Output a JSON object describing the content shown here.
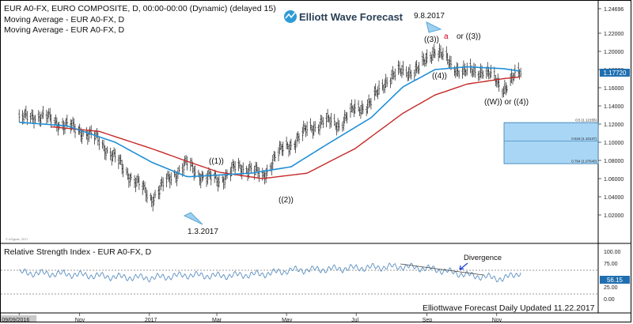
{
  "header": {
    "title": "EUR A0-FX, EURO COMPOSITE, D, 00:00-00:00 (Dynamic) (delayed 15)",
    "study1": "Moving Average - EUR A0-FX, D",
    "study2": "Moving Average - EUR A0-FX, D"
  },
  "logo": {
    "text": "Elliott Wave Forecast"
  },
  "copyright": "© eSignal, 2017",
  "rsi_panel": {
    "title": "Relative Strength Index - EUR A0-FX, D",
    "value_badge": "56.15"
  },
  "footer": {
    "text": "Elliottwave Forecast Daily Updated 11.22.2017"
  },
  "annotations": {
    "date_top": "9.8.2017",
    "wave_3": "((3))",
    "wave_a": "a",
    "or_3": "or ((3))",
    "wave_4": "((4))",
    "w_or_4": "((W)) or ((4))",
    "wave_1": "((1))",
    "wave_2": "((2))",
    "date_low": "1.3.2017",
    "divergence": "Divergence"
  },
  "colors": {
    "price": "#1a1a1a",
    "ma_blue": "#1f8fd6",
    "ma_red": "#c62828",
    "rsi": "#5a8fc0",
    "fib_box": "#a9d6f5",
    "price_badge": "#1f6fb0",
    "rsi_badge": "#1f6fb0",
    "wave_a": "#d0021b"
  },
  "chart_data": [
    {
      "type": "line",
      "title": "EUR A0-FX, EURO COMPOSITE, D",
      "xlabel": "",
      "ylabel": "",
      "ylim": [
        1.0,
        1.25
      ],
      "x_ticks": [
        "09/09/2016",
        "Nov",
        "2017",
        "Mar",
        "May",
        "Jul",
        "Sep",
        "Nov"
      ],
      "y_ticks": [
        "1.24696",
        "1.22000",
        "1.20000",
        "1.18000",
        "1.16000",
        "1.14000",
        "1.12000",
        "1.10000",
        "1.08000",
        "1.06000",
        "1.04000",
        "1.02000"
      ],
      "last_price_label": "1.17720",
      "series": [
        {
          "name": "EUR A0-FX",
          "x": [
            "2016-09-09",
            "2016-09-23",
            "2016-10-07",
            "2016-10-21",
            "2016-11-04",
            "2016-11-18",
            "2016-12-02",
            "2016-12-16",
            "2017-01-03",
            "2017-01-20",
            "2017-02-03",
            "2017-02-17",
            "2017-03-03",
            "2017-03-17",
            "2017-03-31",
            "2017-04-10",
            "2017-04-21",
            "2017-05-05",
            "2017-05-19",
            "2017-06-02",
            "2017-06-16",
            "2017-06-30",
            "2017-07-14",
            "2017-07-28",
            "2017-08-11",
            "2017-08-25",
            "2017-09-08",
            "2017-09-22",
            "2017-10-06",
            "2017-10-20",
            "2017-11-07",
            "2017-11-22"
          ],
          "values": [
            1.124,
            1.13,
            1.125,
            1.118,
            1.112,
            1.102,
            1.082,
            1.062,
            1.038,
            1.062,
            1.076,
            1.062,
            1.058,
            1.071,
            1.072,
            1.06,
            1.085,
            1.098,
            1.113,
            1.123,
            1.12,
            1.136,
            1.143,
            1.17,
            1.178,
            1.18,
            1.203,
            1.185,
            1.176,
            1.18,
            1.16,
            1.1772
          ]
        },
        {
          "name": "Moving Average (blue)",
          "x": [
            "2016-09-09",
            "2016-10-21",
            "2016-12-02",
            "2017-01-03",
            "2017-02-03",
            "2017-03-03",
            "2017-03-31",
            "2017-05-05",
            "2017-06-02",
            "2017-07-14",
            "2017-08-11",
            "2017-09-08",
            "2017-10-06",
            "2017-11-07",
            "2017-11-22"
          ],
          "values": [
            1.122,
            1.118,
            1.1,
            1.078,
            1.062,
            1.064,
            1.066,
            1.073,
            1.095,
            1.127,
            1.161,
            1.18,
            1.183,
            1.181,
            1.178
          ]
        },
        {
          "name": "Moving Average (red)",
          "x": [
            "2016-10-07",
            "2016-11-18",
            "2017-01-03",
            "2017-02-03",
            "2017-03-03",
            "2017-04-10",
            "2017-05-19",
            "2017-06-30",
            "2017-08-11",
            "2017-09-08",
            "2017-10-06",
            "2017-11-07",
            "2017-11-22"
          ],
          "values": [
            1.117,
            1.112,
            1.093,
            1.079,
            1.067,
            1.06,
            1.066,
            1.093,
            1.132,
            1.152,
            1.164,
            1.17,
            1.172
          ]
        }
      ],
      "fib_zone": {
        "levels": [
          {
            "label": "0.5 (1.12155)",
            "value": 1.12155
          },
          {
            "label": "0.618 (1.10137)",
            "value": 1.10137
          },
          {
            "label": "0.764 (1.07640)",
            "value": 1.0764
          }
        ]
      }
    },
    {
      "type": "line",
      "title": "Relative Strength Index - EUR A0-FX, D",
      "ylim": [
        0,
        100
      ],
      "y_ticks": [
        "100.00",
        "75.00",
        "56.15",
        "25.00",
        "0.00"
      ],
      "reference_lines": [
        70,
        30
      ],
      "series": [
        {
          "name": "RSI",
          "x": [
            "2016-09-09",
            "2016-10-21",
            "2016-12-02",
            "2017-01-03",
            "2017-02-03",
            "2017-03-03",
            "2017-04-10",
            "2017-05-05",
            "2017-06-02",
            "2017-07-14",
            "2017-08-11",
            "2017-09-08",
            "2017-10-06",
            "2017-11-07",
            "2017-11-22"
          ],
          "values": [
            55,
            52,
            46,
            44,
            50,
            48,
            52,
            60,
            62,
            66,
            68,
            62,
            50,
            42,
            56.15
          ]
        }
      ]
    }
  ]
}
